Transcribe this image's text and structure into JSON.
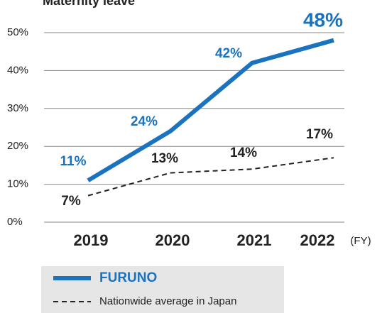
{
  "chart_data": {
    "type": "line",
    "title": "Maternity leave",
    "categories": [
      "2019",
      "2020",
      "2021",
      "2022"
    ],
    "x_unit": "(FY)",
    "series": [
      {
        "name": "FURUNO",
        "color": "#1a73be",
        "values": [
          11,
          24,
          42,
          48
        ],
        "value_labels": [
          "11%",
          "24%",
          "42%",
          "48%"
        ]
      },
      {
        "name": "Nationwide average in Japan",
        "color": "#222222",
        "values": [
          7,
          13,
          14,
          17
        ],
        "value_labels": [
          "7%",
          "13%",
          "14%",
          "17%"
        ]
      }
    ],
    "ylim": [
      0,
      50
    ],
    "yticks": [
      {
        "value": 0,
        "label": "0%"
      },
      {
        "value": 10,
        "label": "10%"
      },
      {
        "value": 20,
        "label": "20%"
      },
      {
        "value": 30,
        "label": "30%"
      },
      {
        "value": 40,
        "label": "40%"
      },
      {
        "value": 50,
        "label": "50%"
      }
    ],
    "grid": true
  }
}
